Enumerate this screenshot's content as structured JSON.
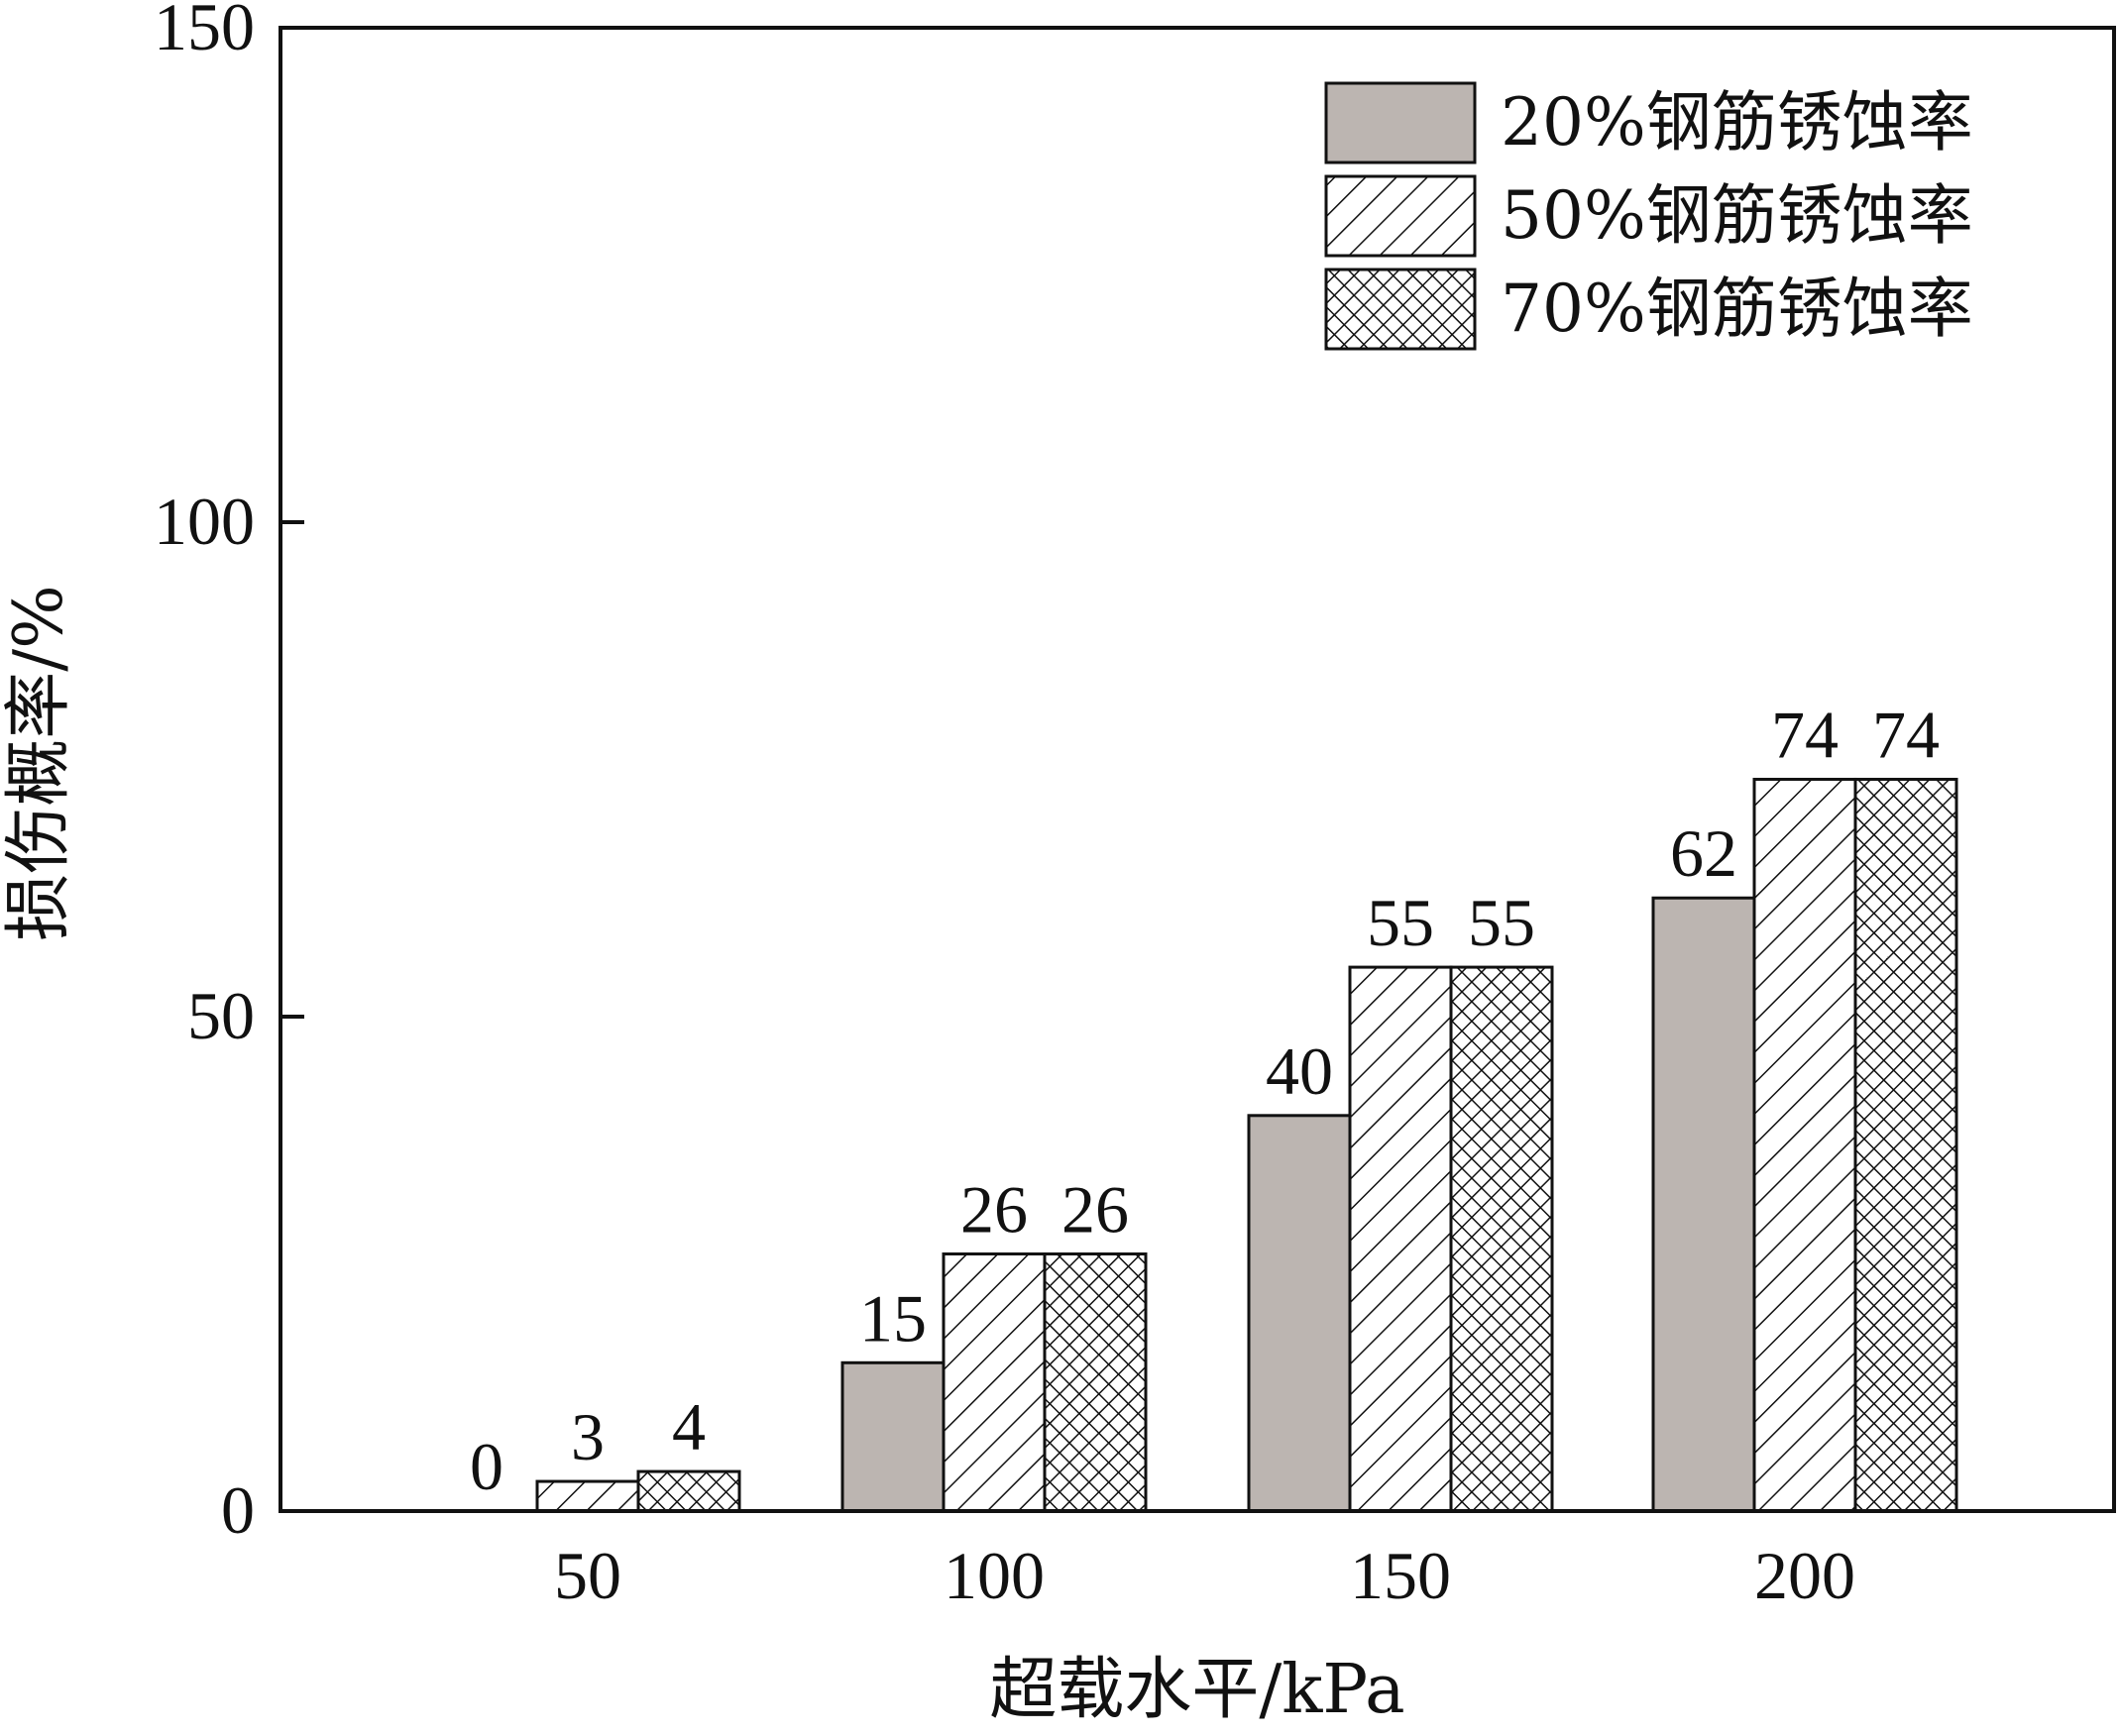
{
  "chart_data": {
    "type": "bar",
    "title": "",
    "xlabel": "超载水平/kPa",
    "ylabel": "损伤概率/%",
    "categories": [
      "50",
      "100",
      "150",
      "200"
    ],
    "ylim": [
      0,
      150
    ],
    "yticks": [
      "0",
      "50",
      "100",
      "150"
    ],
    "grid": false,
    "legend_position": "top-right",
    "series": [
      {
        "name": "20%钢筋锈蚀率",
        "values": [
          0,
          15,
          40,
          62
        ],
        "labels": [
          "0",
          "15",
          "40",
          "62"
        ],
        "fill": "solid-gray",
        "color": "#bcb5b1"
      },
      {
        "name": "50%钢筋锈蚀率",
        "values": [
          3,
          26,
          55,
          74
        ],
        "labels": [
          "3",
          "26",
          "55",
          "74"
        ],
        "fill": "diagonal-hatch",
        "color": "#ffffff"
      },
      {
        "name": "70%钢筋锈蚀率",
        "values": [
          4,
          26,
          55,
          74
        ],
        "labels": [
          "4",
          "26",
          "55",
          "74"
        ],
        "fill": "cross-hatch",
        "color": "#ffffff"
      }
    ]
  }
}
